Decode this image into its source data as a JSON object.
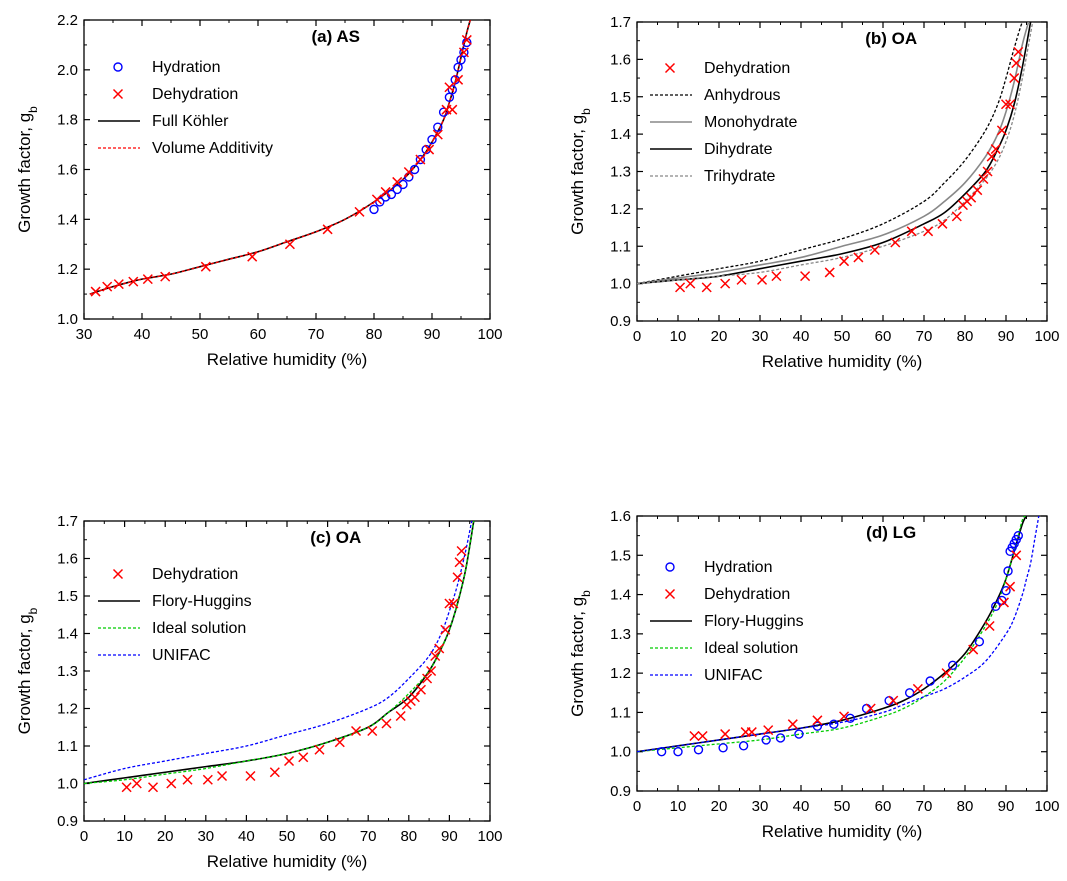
{
  "figure": {
    "xlabel": "Relative humidity (%)",
    "ylabel": "Growth factor, g",
    "ylabel_sub": "b"
  },
  "chart_data": [
    {
      "id": "a",
      "type": "scatter",
      "title": "(a)  AS",
      "xlim": [
        30,
        100
      ],
      "ylim": [
        1.0,
        2.2
      ],
      "xticks": [
        "30",
        "40",
        "50",
        "60",
        "70",
        "80",
        "90",
        "100"
      ],
      "yticks": [
        "1.0",
        "1.2",
        "1.4",
        "1.6",
        "1.8",
        "2.0",
        "2.2"
      ],
      "legend_position": "top-left",
      "series": [
        {
          "name": "Hydration",
          "kind": "marker",
          "marker": "circle",
          "color": "#0000ff",
          "x": [
            80,
            81,
            82,
            83,
            84,
            85,
            86,
            87,
            88,
            89,
            90,
            91,
            92,
            93,
            93.5,
            94,
            94.5,
            95,
            95.5,
            96
          ],
          "y": [
            1.44,
            1.47,
            1.49,
            1.5,
            1.52,
            1.54,
            1.57,
            1.6,
            1.64,
            1.68,
            1.72,
            1.77,
            1.83,
            1.89,
            1.92,
            1.96,
            2.01,
            2.04,
            2.07,
            2.11
          ]
        },
        {
          "name": "Dehydration",
          "kind": "marker",
          "marker": "x",
          "color": "#ff0000",
          "x": [
            32,
            34,
            36,
            38.5,
            41,
            44,
            51,
            59,
            65.5,
            72,
            77.5,
            80.5,
            82,
            84,
            86,
            88,
            89.5,
            91,
            92.5,
            93,
            93.5,
            94.5,
            95.5,
            96
          ],
          "y": [
            1.11,
            1.13,
            1.14,
            1.15,
            1.16,
            1.17,
            1.21,
            1.25,
            1.3,
            1.36,
            1.43,
            1.48,
            1.51,
            1.55,
            1.59,
            1.64,
            1.68,
            1.74,
            1.84,
            1.93,
            1.84,
            1.96,
            2.07,
            2.12
          ]
        },
        {
          "name": "Full Köhler",
          "kind": "line",
          "style": "solid",
          "color": "#000000",
          "x": [
            31,
            35,
            40,
            45,
            50,
            55,
            60,
            65,
            70,
            75,
            80,
            85,
            88,
            90,
            92,
            93,
            94,
            95,
            96,
            96.6
          ],
          "y": [
            1.1,
            1.13,
            1.16,
            1.18,
            1.21,
            1.24,
            1.27,
            1.31,
            1.35,
            1.4,
            1.47,
            1.56,
            1.64,
            1.71,
            1.8,
            1.87,
            1.95,
            2.05,
            2.15,
            2.2
          ]
        },
        {
          "name": "Volume Additivity",
          "kind": "line",
          "style": "dotted",
          "color": "#ff0000",
          "x": [
            31,
            35,
            40,
            45,
            50,
            55,
            60,
            65,
            70,
            75,
            80,
            85,
            88,
            90,
            92,
            93,
            94,
            95,
            96,
            96.6
          ],
          "y": [
            1.1,
            1.13,
            1.16,
            1.18,
            1.21,
            1.24,
            1.27,
            1.31,
            1.35,
            1.4,
            1.47,
            1.56,
            1.64,
            1.71,
            1.8,
            1.87,
            1.95,
            2.05,
            2.15,
            2.2
          ]
        }
      ]
    },
    {
      "id": "b",
      "type": "scatter",
      "title": "(b)  OA",
      "xlim": [
        0,
        100
      ],
      "ylim": [
        0.9,
        1.7
      ],
      "xticks": [
        "0",
        "10",
        "20",
        "30",
        "40",
        "50",
        "60",
        "70",
        "80",
        "90",
        "100"
      ],
      "yticks": [
        "0.9",
        "1.0",
        "1.1",
        "1.2",
        "1.3",
        "1.4",
        "1.5",
        "1.6",
        "1.7"
      ],
      "legend_position": "top-left",
      "series": [
        {
          "name": "Dehydration",
          "kind": "marker",
          "marker": "x",
          "color": "#ff0000",
          "x": [
            10.5,
            13,
            17,
            21.5,
            25.5,
            30.5,
            34,
            41,
            47,
            50.5,
            54,
            58,
            63,
            67,
            71,
            74.5,
            78,
            79.5,
            80.5,
            81.5,
            83,
            84.5,
            85.5,
            86.5,
            87.5,
            89,
            90,
            91,
            92,
            92.5,
            93
          ],
          "y": [
            0.99,
            1.0,
            0.99,
            1.0,
            1.01,
            1.01,
            1.02,
            1.02,
            1.03,
            1.06,
            1.07,
            1.09,
            1.11,
            1.14,
            1.14,
            1.16,
            1.18,
            1.21,
            1.22,
            1.23,
            1.25,
            1.28,
            1.3,
            1.34,
            1.36,
            1.41,
            1.48,
            1.48,
            1.55,
            1.59,
            1.62
          ]
        },
        {
          "name": "Anhydrous",
          "kind": "line",
          "style": "dotted",
          "color": "#000000",
          "x": [
            0,
            10,
            20,
            30,
            40,
            50,
            60,
            70,
            75,
            80,
            85,
            88,
            90,
            92,
            94,
            95
          ],
          "y": [
            1.0,
            1.02,
            1.04,
            1.06,
            1.09,
            1.12,
            1.16,
            1.22,
            1.27,
            1.33,
            1.41,
            1.48,
            1.55,
            1.63,
            1.7,
            1.7
          ]
        },
        {
          "name": "Monohydrate",
          "kind": "line",
          "style": "solid",
          "color": "#888888",
          "x": [
            0,
            10,
            20,
            30,
            40,
            50,
            60,
            70,
            75,
            80,
            85,
            88,
            90,
            92,
            94,
            95.5
          ],
          "y": [
            1.0,
            1.015,
            1.03,
            1.05,
            1.07,
            1.1,
            1.13,
            1.18,
            1.22,
            1.27,
            1.34,
            1.4,
            1.46,
            1.54,
            1.64,
            1.7
          ]
        },
        {
          "name": "Dihydrate",
          "kind": "line",
          "style": "solid",
          "color": "#000000",
          "x": [
            0,
            10,
            20,
            30,
            40,
            50,
            60,
            70,
            75,
            80,
            85,
            88,
            90,
            92,
            94,
            96
          ],
          "y": [
            1.0,
            1.01,
            1.02,
            1.04,
            1.06,
            1.08,
            1.11,
            1.16,
            1.19,
            1.24,
            1.3,
            1.36,
            1.41,
            1.48,
            1.58,
            1.7
          ]
        },
        {
          "name": "Trihydrate",
          "kind": "line",
          "style": "dotted",
          "color": "#888888",
          "x": [
            0,
            10,
            20,
            30,
            40,
            50,
            60,
            70,
            75,
            80,
            85,
            88,
            90,
            92,
            94,
            96.5
          ],
          "y": [
            1.0,
            1.01,
            1.02,
            1.03,
            1.05,
            1.07,
            1.1,
            1.14,
            1.17,
            1.22,
            1.28,
            1.33,
            1.38,
            1.45,
            1.55,
            1.7
          ]
        }
      ]
    },
    {
      "id": "c",
      "type": "scatter",
      "title": "(c)  OA",
      "xlim": [
        0,
        100
      ],
      "ylim": [
        0.9,
        1.7
      ],
      "xticks": [
        "0",
        "10",
        "20",
        "30",
        "40",
        "50",
        "60",
        "70",
        "80",
        "90",
        "100"
      ],
      "yticks": [
        "0.9",
        "1.0",
        "1.1",
        "1.2",
        "1.3",
        "1.4",
        "1.5",
        "1.6",
        "1.7"
      ],
      "legend_position": "top-left",
      "series": [
        {
          "name": "Dehydration",
          "kind": "marker",
          "marker": "x",
          "color": "#ff0000",
          "x": [
            10.5,
            13,
            17,
            21.5,
            25.5,
            30.5,
            34,
            41,
            47,
            50.5,
            54,
            58,
            63,
            67,
            71,
            74.5,
            78,
            79.5,
            80.5,
            81.5,
            83,
            84.5,
            85.5,
            86.5,
            87.5,
            89,
            90,
            91,
            92,
            92.5,
            93
          ],
          "y": [
            0.99,
            1.0,
            0.99,
            1.0,
            1.01,
            1.01,
            1.02,
            1.02,
            1.03,
            1.06,
            1.07,
            1.09,
            1.11,
            1.14,
            1.14,
            1.16,
            1.18,
            1.21,
            1.22,
            1.23,
            1.25,
            1.28,
            1.3,
            1.34,
            1.36,
            1.41,
            1.48,
            1.48,
            1.55,
            1.59,
            1.62
          ]
        },
        {
          "name": "Flory-Huggins",
          "kind": "line",
          "style": "solid",
          "color": "#000000",
          "x": [
            0,
            10,
            20,
            30,
            40,
            50,
            60,
            70,
            75,
            80,
            85,
            88,
            90,
            92,
            94,
            96
          ],
          "y": [
            1.0,
            1.015,
            1.03,
            1.045,
            1.06,
            1.08,
            1.11,
            1.15,
            1.19,
            1.23,
            1.3,
            1.36,
            1.41,
            1.48,
            1.57,
            1.7
          ]
        },
        {
          "name": "Ideal solution",
          "kind": "line",
          "style": "dotted",
          "color": "#00cc00",
          "x": [
            0,
            10,
            20,
            30,
            40,
            50,
            60,
            70,
            75,
            80,
            85,
            88,
            90,
            92,
            94,
            96
          ],
          "y": [
            1.0,
            1.01,
            1.025,
            1.04,
            1.06,
            1.08,
            1.11,
            1.15,
            1.19,
            1.24,
            1.3,
            1.36,
            1.41,
            1.48,
            1.57,
            1.7
          ]
        },
        {
          "name": "UNIFAC",
          "kind": "line",
          "style": "dotted",
          "color": "#0000ff",
          "x": [
            0,
            10,
            20,
            30,
            40,
            50,
            60,
            70,
            75,
            80,
            85,
            88,
            90,
            92,
            94,
            95.5
          ],
          "y": [
            1.01,
            1.04,
            1.06,
            1.08,
            1.1,
            1.13,
            1.16,
            1.2,
            1.23,
            1.28,
            1.34,
            1.4,
            1.46,
            1.53,
            1.62,
            1.7
          ]
        }
      ]
    },
    {
      "id": "d",
      "type": "scatter",
      "title": "(d)  LG",
      "xlim": [
        0,
        100
      ],
      "ylim": [
        0.9,
        1.6
      ],
      "xticks": [
        "0",
        "10",
        "20",
        "30",
        "40",
        "50",
        "60",
        "70",
        "80",
        "90",
        "100"
      ],
      "yticks": [
        "0.9",
        "1.0",
        "1.1",
        "1.2",
        "1.3",
        "1.4",
        "1.5",
        "1.6"
      ],
      "legend_position": "top-left",
      "series": [
        {
          "name": "Hydration",
          "kind": "marker",
          "marker": "circle",
          "color": "#0000ff",
          "x": [
            6,
            10,
            15,
            21,
            26,
            31.5,
            35,
            39.5,
            44,
            48,
            52,
            56,
            61.5,
            66.5,
            71.5,
            77,
            83.5,
            87.5,
            89,
            90,
            90.5,
            91,
            91.5,
            92,
            92.5,
            93
          ],
          "y": [
            1.0,
            1.0,
            1.005,
            1.01,
            1.015,
            1.03,
            1.035,
            1.045,
            1.065,
            1.07,
            1.085,
            1.11,
            1.13,
            1.15,
            1.18,
            1.22,
            1.28,
            1.37,
            1.385,
            1.41,
            1.46,
            1.51,
            1.52,
            1.53,
            1.54,
            1.55
          ]
        },
        {
          "name": "Dehydration",
          "kind": "marker",
          "marker": "x",
          "color": "#ff0000",
          "x": [
            14,
            16,
            21.5,
            26.5,
            28,
            32,
            38,
            44,
            50.5,
            57,
            62.5,
            68.5,
            75.5,
            82,
            86,
            89.5,
            91,
            92.5
          ],
          "y": [
            1.04,
            1.04,
            1.045,
            1.05,
            1.05,
            1.055,
            1.07,
            1.08,
            1.09,
            1.11,
            1.13,
            1.16,
            1.2,
            1.26,
            1.32,
            1.38,
            1.42,
            1.5
          ]
        },
        {
          "name": "Flory-Huggins",
          "kind": "line",
          "style": "solid",
          "color": "#000000",
          "x": [
            0,
            10,
            20,
            30,
            40,
            50,
            60,
            65,
            70,
            75,
            80,
            85,
            88,
            90,
            92,
            94,
            95
          ],
          "y": [
            1.0,
            1.015,
            1.03,
            1.045,
            1.06,
            1.08,
            1.11,
            1.13,
            1.16,
            1.2,
            1.25,
            1.33,
            1.39,
            1.44,
            1.51,
            1.58,
            1.6
          ]
        },
        {
          "name": "Ideal solution",
          "kind": "line",
          "style": "dotted",
          "color": "#00cc00",
          "x": [
            0,
            10,
            20,
            30,
            40,
            50,
            60,
            65,
            70,
            75,
            80,
            85,
            88,
            90,
            92,
            94,
            95
          ],
          "y": [
            1.0,
            1.01,
            1.02,
            1.03,
            1.045,
            1.06,
            1.09,
            1.11,
            1.14,
            1.18,
            1.24,
            1.32,
            1.38,
            1.44,
            1.51,
            1.59,
            1.6
          ]
        },
        {
          "name": "UNIFAC",
          "kind": "line",
          "style": "dotted",
          "color": "#0000ff",
          "x": [
            0,
            10,
            20,
            30,
            40,
            50,
            60,
            65,
            70,
            75,
            80,
            85,
            90,
            92,
            94,
            95,
            96,
            97,
            98
          ],
          "y": [
            1.0,
            1.015,
            1.03,
            1.045,
            1.06,
            1.075,
            1.1,
            1.12,
            1.14,
            1.16,
            1.19,
            1.23,
            1.3,
            1.34,
            1.4,
            1.44,
            1.48,
            1.54,
            1.6
          ]
        }
      ]
    }
  ]
}
